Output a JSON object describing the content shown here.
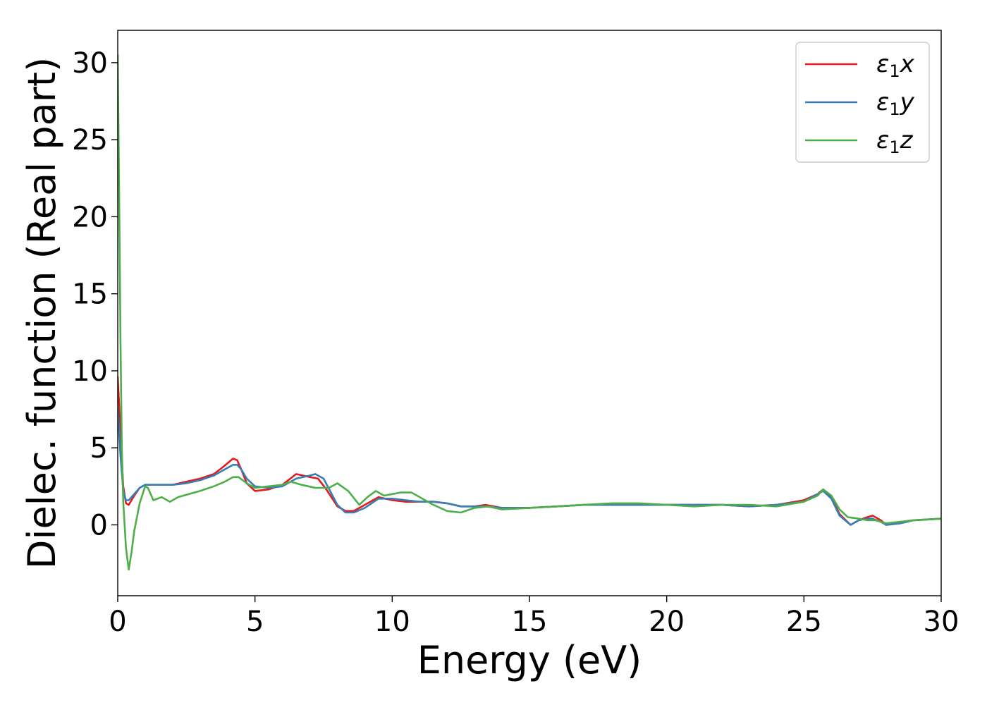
{
  "chart_data": {
    "type": "line",
    "title": "",
    "xlabel": "Energy (eV)",
    "ylabel": "Dielec. function (Real part)",
    "xlim": [
      0,
      30
    ],
    "ylim": [
      -4.6,
      32.1
    ],
    "xticks": [
      "0",
      "5",
      "10",
      "15",
      "20",
      "25",
      "30"
    ],
    "yticks": [
      "0",
      "5",
      "10",
      "15",
      "20",
      "25",
      "30"
    ],
    "grid": false,
    "legend_position": "top-right",
    "series": [
      {
        "name": "ε₁x",
        "legend": {
          "base": "ε",
          "sub": "1",
          "suffix": "x"
        },
        "color": "#e41a1c",
        "x": [
          0,
          0.1,
          0.2,
          0.3,
          0.4,
          0.6,
          0.8,
          1.0,
          1.5,
          2.0,
          2.5,
          3.0,
          3.5,
          3.8,
          4.0,
          4.2,
          4.35,
          4.5,
          4.7,
          5.0,
          5.5,
          6.0,
          6.5,
          7.0,
          7.3,
          7.6,
          8.0,
          8.3,
          8.6,
          9.0,
          9.5,
          10.0,
          10.5,
          11.0,
          11.5,
          12.0,
          12.5,
          13.0,
          13.4,
          14.0,
          15.0,
          16.0,
          17.0,
          18.0,
          19.0,
          20.0,
          21.0,
          22.0,
          23.0,
          24.0,
          25.0,
          25.5,
          25.7,
          26.0,
          26.3,
          26.7,
          27.0,
          27.3,
          27.5,
          27.8,
          28.0,
          28.5,
          29.0,
          30.0
        ],
        "y": [
          9.6,
          6.0,
          2.5,
          1.4,
          1.3,
          1.9,
          2.4,
          2.6,
          2.6,
          2.6,
          2.8,
          3.0,
          3.3,
          3.7,
          4.0,
          4.3,
          4.2,
          3.6,
          2.7,
          2.2,
          2.3,
          2.6,
          3.3,
          3.1,
          3.0,
          2.3,
          1.2,
          0.9,
          0.9,
          1.3,
          1.8,
          1.6,
          1.5,
          1.5,
          1.5,
          1.4,
          1.2,
          1.2,
          1.3,
          1.1,
          1.1,
          1.2,
          1.3,
          1.3,
          1.3,
          1.3,
          1.3,
          1.3,
          1.2,
          1.3,
          1.6,
          2.0,
          2.3,
          1.8,
          0.7,
          0.0,
          0.3,
          0.5,
          0.6,
          0.3,
          0.0,
          0.1,
          0.3,
          0.4
        ]
      },
      {
        "name": "ε₁y",
        "legend": {
          "base": "ε",
          "sub": "1",
          "suffix": "y"
        },
        "color": "#377eb8",
        "x": [
          0,
          0.1,
          0.2,
          0.3,
          0.4,
          0.6,
          0.8,
          1.0,
          1.5,
          2.0,
          2.5,
          3.0,
          3.5,
          3.8,
          4.0,
          4.2,
          4.35,
          4.5,
          4.7,
          5.0,
          5.5,
          6.0,
          6.5,
          7.0,
          7.2,
          7.5,
          8.0,
          8.3,
          8.6,
          9.0,
          9.5,
          10.0,
          10.5,
          11.0,
          11.5,
          12.0,
          12.5,
          13.0,
          13.4,
          14.0,
          15.0,
          16.0,
          17.0,
          18.0,
          19.0,
          20.0,
          21.0,
          22.0,
          23.0,
          24.0,
          25.0,
          25.5,
          25.7,
          26.0,
          26.3,
          26.7,
          27.0,
          27.3,
          27.5,
          27.8,
          28.0,
          28.5,
          29.0,
          30.0
        ],
        "y": [
          7.6,
          4.5,
          2.2,
          1.6,
          1.6,
          2.0,
          2.4,
          2.6,
          2.6,
          2.6,
          2.7,
          2.9,
          3.2,
          3.5,
          3.7,
          3.9,
          3.9,
          3.6,
          3.0,
          2.5,
          2.4,
          2.5,
          3.0,
          3.2,
          3.3,
          3.0,
          1.3,
          0.8,
          0.8,
          1.1,
          1.7,
          1.7,
          1.6,
          1.5,
          1.5,
          1.4,
          1.2,
          1.2,
          1.2,
          1.1,
          1.1,
          1.2,
          1.3,
          1.3,
          1.3,
          1.3,
          1.3,
          1.3,
          1.2,
          1.3,
          1.5,
          2.0,
          2.2,
          1.7,
          0.6,
          0.0,
          0.3,
          0.4,
          0.4,
          0.2,
          0.0,
          0.1,
          0.3,
          0.4
        ]
      },
      {
        "name": "ε₁z",
        "legend": {
          "base": "ε",
          "sub": "1",
          "suffix": "z"
        },
        "color": "#4daf4a",
        "x": [
          0,
          0.05,
          0.1,
          0.15,
          0.2,
          0.3,
          0.4,
          0.5,
          0.6,
          0.8,
          1.0,
          1.1,
          1.3,
          1.6,
          1.9,
          2.2,
          2.6,
          3.0,
          3.5,
          3.9,
          4.2,
          4.4,
          4.7,
          5.0,
          5.5,
          6.0,
          6.3,
          6.7,
          7.2,
          7.7,
          8.0,
          8.4,
          8.8,
          9.1,
          9.4,
          9.7,
          10.0,
          10.3,
          10.7,
          11.0,
          11.5,
          12.0,
          12.5,
          13.0,
          13.5,
          14.0,
          15.0,
          16.0,
          17.0,
          18.0,
          19.0,
          20.0,
          21.0,
          22.0,
          23.0,
          24.0,
          25.0,
          25.5,
          25.7,
          26.0,
          26.3,
          26.6,
          27.0,
          27.3,
          27.6,
          28.0,
          28.5,
          29.0,
          30.0
        ],
        "y": [
          30.5,
          22.0,
          12.0,
          5.0,
          1.5,
          -1.5,
          -2.9,
          -1.8,
          -0.4,
          1.4,
          2.5,
          2.4,
          1.6,
          1.8,
          1.5,
          1.8,
          2.0,
          2.2,
          2.5,
          2.8,
          3.1,
          3.1,
          2.7,
          2.4,
          2.5,
          2.6,
          2.8,
          2.6,
          2.4,
          2.4,
          2.7,
          2.2,
          1.3,
          1.8,
          2.2,
          1.9,
          2.0,
          2.1,
          2.1,
          1.8,
          1.3,
          0.9,
          0.8,
          1.1,
          1.2,
          1.0,
          1.1,
          1.2,
          1.3,
          1.4,
          1.4,
          1.3,
          1.2,
          1.3,
          1.3,
          1.2,
          1.5,
          1.9,
          2.3,
          1.9,
          1.0,
          0.5,
          0.4,
          0.3,
          0.3,
          0.1,
          0.2,
          0.3,
          0.4
        ]
      }
    ]
  }
}
